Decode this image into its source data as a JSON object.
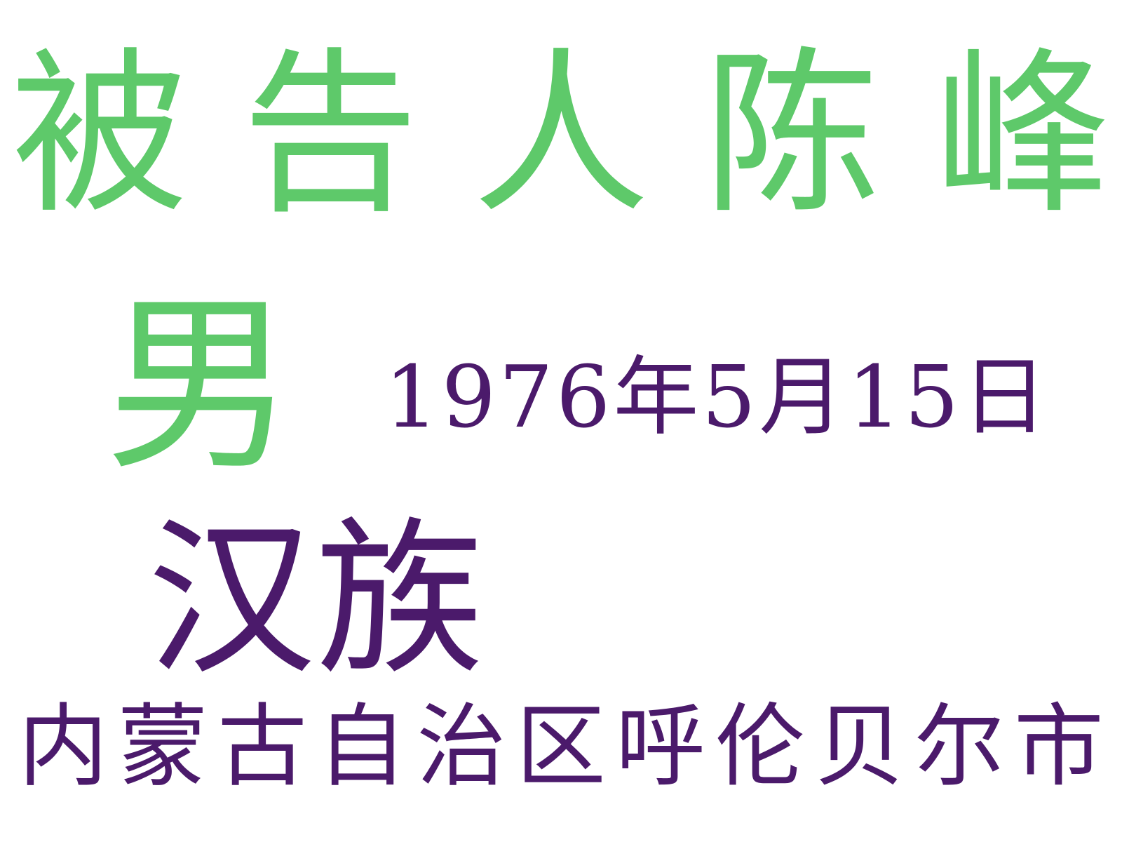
{
  "defendant_line": {
    "text": "被告人陈峰",
    "color": "#5ec96a"
  },
  "gender": {
    "text": "男",
    "color": "#5ec96a"
  },
  "birth_date": {
    "text": "1976年5月15日",
    "color": "#4b1a6b"
  },
  "ethnicity": {
    "text": "汉族",
    "color": "#4b1a6b"
  },
  "address": {
    "text": "内蒙古自治区呼伦贝尔市",
    "color": "#4b1a6b"
  }
}
